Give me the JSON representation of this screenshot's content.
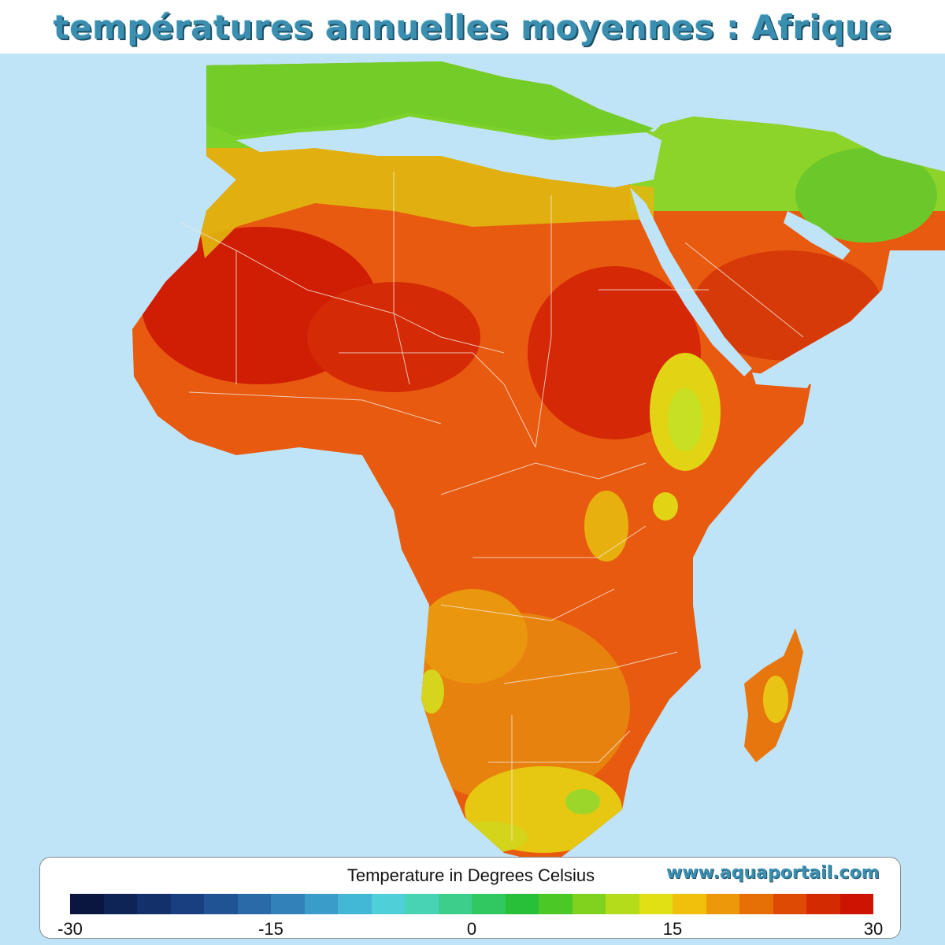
{
  "title": "températures annuelles moyennes : Afrique",
  "legend": {
    "title": "Temperature in Degrees Celsius",
    "ticks": [
      "-30",
      "-15",
      "0",
      "15",
      "30"
    ],
    "colors": [
      "#0a1640",
      "#0f2456",
      "#14306b",
      "#1a3f80",
      "#205394",
      "#2a6aa8",
      "#3282b8",
      "#3a9cc8",
      "#42b8d6",
      "#4fd0d8",
      "#48d4b4",
      "#3ccf8c",
      "#30c860",
      "#28c038",
      "#4ac826",
      "#80d21e",
      "#b4dc1a",
      "#e0e014",
      "#f0c00c",
      "#ec9808",
      "#e67006",
      "#de4a04",
      "#d42a02",
      "#cc1400"
    ]
  },
  "watermark": "www.aquaportail.com",
  "colors": {
    "ocean": "#bfe4f7",
    "hot": "#d8240a",
    "warm": "#e8700e",
    "mild": "#e8c010",
    "cool": "#6cc82a",
    "title": "#3a8fb0"
  }
}
